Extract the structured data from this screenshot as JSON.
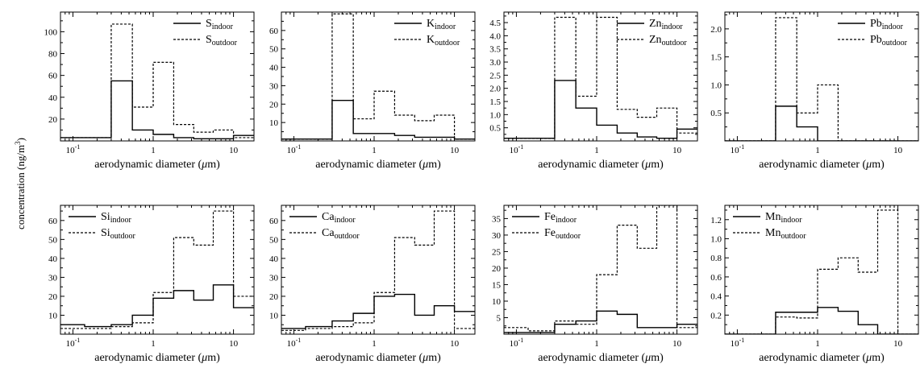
{
  "figure": {
    "ylabel": "concentration (ng/m",
    "ylabel_sup": "3",
    "ylabel_close": ")"
  },
  "chart_data": [
    {
      "type": "line",
      "step": true,
      "xscale": "log",
      "xlabel": "aerodynamic diameter (μm)",
      "xlim": [
        0.07,
        18
      ],
      "ylim": [
        0,
        118
      ],
      "yticks": [
        20,
        40,
        60,
        80,
        100
      ],
      "xticks": [
        {
          "value": 0.1,
          "label": "10",
          "sup": "-1"
        },
        {
          "value": 1,
          "label": "1"
        },
        {
          "value": 10,
          "label": "10"
        }
      ],
      "legend": "top-right",
      "bin_edges": [
        0.07,
        0.3,
        0.55,
        1.0,
        1.8,
        3.2,
        5.6,
        10,
        18
      ],
      "series": [
        {
          "name": "S",
          "sub": "indoor",
          "style": "solid",
          "values": [
            3,
            55,
            10,
            6,
            3,
            2,
            2,
            5
          ]
        },
        {
          "name": "S",
          "sub": "outdoor",
          "style": "dotted",
          "values": [
            3,
            107,
            31,
            72,
            15,
            8,
            10,
            3
          ]
        }
      ]
    },
    {
      "type": "line",
      "step": true,
      "xscale": "log",
      "xlabel": "aerodynamic diameter (μm)",
      "xlim": [
        0.07,
        18
      ],
      "ylim": [
        0,
        70
      ],
      "yticks": [
        10,
        20,
        30,
        40,
        50,
        60
      ],
      "xticks": [
        {
          "value": 0.1,
          "label": "10",
          "sup": "-1"
        },
        {
          "value": 1,
          "label": "1"
        },
        {
          "value": 10,
          "label": "10"
        }
      ],
      "legend": "top-right",
      "bin_edges": [
        0.07,
        0.3,
        0.55,
        1.0,
        1.8,
        3.2,
        5.6,
        10,
        18
      ],
      "series": [
        {
          "name": "K",
          "sub": "indoor",
          "style": "solid",
          "values": [
            1,
            22,
            4,
            4,
            3,
            2,
            2,
            1
          ]
        },
        {
          "name": "K",
          "sub": "outdoor",
          "style": "dotted",
          "values": [
            1,
            69,
            12,
            27,
            14,
            11,
            14,
            1
          ]
        }
      ]
    },
    {
      "type": "line",
      "step": true,
      "xscale": "log",
      "xlabel": "aerodynamic diameter (μm)",
      "xlim": [
        0.07,
        18
      ],
      "ylim": [
        0,
        4.9
      ],
      "yticks": [
        0.5,
        1.0,
        1.5,
        2.0,
        2.5,
        3.0,
        3.5,
        4.0,
        4.5
      ],
      "xticks": [
        {
          "value": 0.1,
          "label": "10",
          "sup": "-1"
        },
        {
          "value": 1,
          "label": "1"
        },
        {
          "value": 10,
          "label": "10"
        }
      ],
      "legend": "top-right",
      "bin_edges": [
        0.07,
        0.3,
        0.55,
        1.0,
        1.8,
        3.2,
        5.6,
        10,
        18
      ],
      "series": [
        {
          "name": "Zn",
          "sub": "indoor",
          "style": "solid",
          "values": [
            0.1,
            2.3,
            1.25,
            0.6,
            0.3,
            0.15,
            0.1,
            0.45
          ]
        },
        {
          "name": "Zn",
          "sub": "outdoor",
          "style": "dotted",
          "values": [
            0.1,
            4.7,
            1.7,
            4.7,
            1.2,
            0.9,
            1.25,
            0.3
          ]
        }
      ]
    },
    {
      "type": "line",
      "step": true,
      "xscale": "log",
      "xlabel": "aerodynamic diameter (μm)",
      "xlim": [
        0.07,
        18
      ],
      "ylim": [
        0,
        2.3
      ],
      "yticks": [
        0.5,
        1.0,
        1.5,
        2.0
      ],
      "xticks": [
        {
          "value": 0.1,
          "label": "10",
          "sup": "-1"
        },
        {
          "value": 1,
          "label": "1"
        },
        {
          "value": 10,
          "label": "10"
        }
      ],
      "legend": "top-right",
      "bin_edges": [
        0.07,
        0.3,
        0.55,
        1.0,
        1.8,
        3.2,
        5.6,
        10,
        18
      ],
      "series": [
        {
          "name": "Pb",
          "sub": "indoor",
          "style": "solid",
          "values": [
            0,
            0.62,
            0.25,
            0,
            0,
            0,
            0,
            0
          ]
        },
        {
          "name": "Pb",
          "sub": "outdoor",
          "style": "dotted",
          "values": [
            0,
            2.2,
            0.5,
            1.0,
            0,
            0,
            0,
            0
          ]
        }
      ]
    },
    {
      "type": "line",
      "step": true,
      "xscale": "log",
      "xlabel": "aerodynamic diameter (μm)",
      "xlim": [
        0.07,
        18
      ],
      "ylim": [
        0,
        68
      ],
      "yticks": [
        10,
        20,
        30,
        40,
        50,
        60
      ],
      "xticks": [
        {
          "value": 0.1,
          "label": "10",
          "sup": "-1"
        },
        {
          "value": 1,
          "label": "1"
        },
        {
          "value": 10,
          "label": "10"
        }
      ],
      "legend": "top-left",
      "bin_edges": [
        0.07,
        0.14,
        0.3,
        0.55,
        1.0,
        1.8,
        3.2,
        5.6,
        10,
        18
      ],
      "series": [
        {
          "name": "Si",
          "sub": "indoor",
          "style": "solid",
          "values": [
            5,
            4,
            5,
            10,
            19,
            23,
            18,
            26,
            14
          ]
        },
        {
          "name": "Si",
          "sub": "outdoor",
          "style": "dotted",
          "values": [
            3,
            3,
            4,
            6,
            22,
            51,
            47,
            65,
            20
          ]
        }
      ]
    },
    {
      "type": "line",
      "step": true,
      "xscale": "log",
      "xlabel": "aerodynamic diameter (μm)",
      "xlim": [
        0.07,
        18
      ],
      "ylim": [
        0,
        68
      ],
      "yticks": [
        10,
        20,
        30,
        40,
        50,
        60
      ],
      "xticks": [
        {
          "value": 0.1,
          "label": "10",
          "sup": "-1"
        },
        {
          "value": 1,
          "label": "1"
        },
        {
          "value": 10,
          "label": "10"
        }
      ],
      "legend": "top-left",
      "bin_edges": [
        0.07,
        0.14,
        0.3,
        0.55,
        1.0,
        1.8,
        3.2,
        5.6,
        10,
        18
      ],
      "series": [
        {
          "name": "Ca",
          "sub": "indoor",
          "style": "solid",
          "values": [
            3,
            4,
            7,
            11,
            20,
            21,
            10,
            15,
            12
          ]
        },
        {
          "name": "Ca",
          "sub": "outdoor",
          "style": "dotted",
          "values": [
            2,
            3,
            4,
            6,
            22,
            51,
            47,
            65,
            3
          ]
        }
      ]
    },
    {
      "type": "line",
      "step": true,
      "xscale": "log",
      "xlabel": "aerodynamic diameter (μm)",
      "xlim": [
        0.07,
        18
      ],
      "ylim": [
        0,
        39
      ],
      "yticks": [
        5,
        10,
        15,
        20,
        25,
        30,
        35
      ],
      "xticks": [
        {
          "value": 0.1,
          "label": "10",
          "sup": "-1"
        },
        {
          "value": 1,
          "label": "1"
        },
        {
          "value": 10,
          "label": "10"
        }
      ],
      "legend": "top-left",
      "bin_edges": [
        0.07,
        0.14,
        0.3,
        0.55,
        1.0,
        1.8,
        3.2,
        5.6,
        10,
        18
      ],
      "series": [
        {
          "name": "Fe",
          "sub": "indoor",
          "style": "solid",
          "values": [
            0.5,
            0.5,
            3,
            4,
            7,
            6,
            2,
            2,
            3
          ]
        },
        {
          "name": "Fe",
          "sub": "outdoor",
          "style": "dotted",
          "values": [
            2,
            1,
            4,
            3,
            18,
            33,
            26,
            39,
            2
          ]
        }
      ]
    },
    {
      "type": "line",
      "step": true,
      "xscale": "log",
      "xlabel": "aerodynamic diameter (μm)",
      "xlim": [
        0.07,
        18
      ],
      "ylim": [
        0,
        1.35
      ],
      "yticks": [
        0.2,
        0.4,
        0.6,
        0.8,
        1.0,
        1.2
      ],
      "xticks": [
        {
          "value": 0.1,
          "label": "10",
          "sup": "-1"
        },
        {
          "value": 1,
          "label": "1"
        },
        {
          "value": 10,
          "label": "10"
        }
      ],
      "legend": "top-left",
      "bin_edges": [
        0.07,
        0.3,
        0.55,
        1.0,
        1.8,
        3.2,
        5.6,
        10,
        18
      ],
      "series": [
        {
          "name": "Mn",
          "sub": "indoor",
          "style": "solid",
          "values": [
            0,
            0.23,
            0.23,
            0.28,
            0.24,
            0.1,
            0,
            0
          ]
        },
        {
          "name": "Mn",
          "sub": "outdoor",
          "style": "dotted",
          "values": [
            0,
            0.18,
            0.17,
            0.68,
            0.8,
            0.65,
            1.3,
            0
          ]
        }
      ]
    }
  ]
}
